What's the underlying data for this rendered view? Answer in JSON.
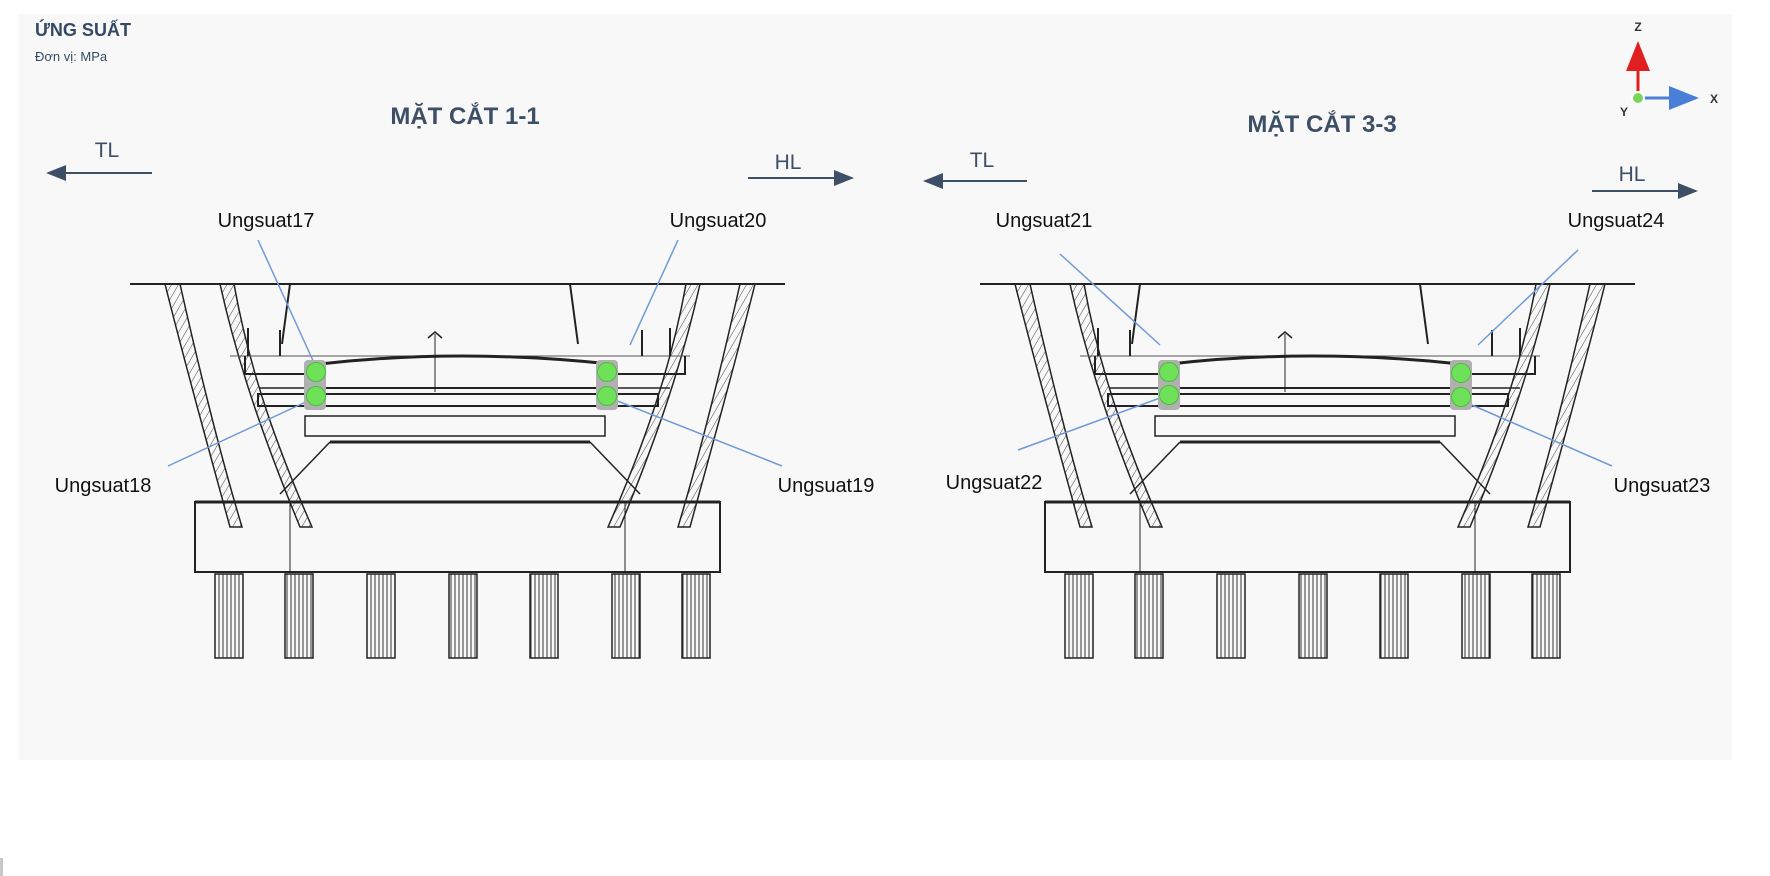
{
  "header": {
    "title": "ỨNG SUẤT",
    "unit": "Đơn vị: MPa"
  },
  "axes_widget": {
    "z": "Z",
    "x": "X",
    "y": "Y",
    "colors": {
      "z": "#e02020",
      "x": "#4a7fd8",
      "origin": "#7bd75a"
    }
  },
  "sections": [
    {
      "title": "MẶT CẮT 1-1",
      "left_dir": "TL",
      "right_dir": "HL",
      "sensors": [
        {
          "label": "Ungsuat17"
        },
        {
          "label": "Ungsuat20"
        },
        {
          "label": "Ungsuat18"
        },
        {
          "label": "Ungsuat19"
        }
      ]
    },
    {
      "title": "MẶT CẮT 3-3",
      "left_dir": "TL",
      "right_dir": "HL",
      "sensors": [
        {
          "label": "Ungsuat21"
        },
        {
          "label": "Ungsuat24"
        },
        {
          "label": "Ungsuat22"
        },
        {
          "label": "Ungsuat23"
        }
      ]
    }
  ],
  "colors": {
    "sensor": "#6fe05a",
    "leader": "#6f9ad8",
    "text_dark": "#3d4f66"
  }
}
